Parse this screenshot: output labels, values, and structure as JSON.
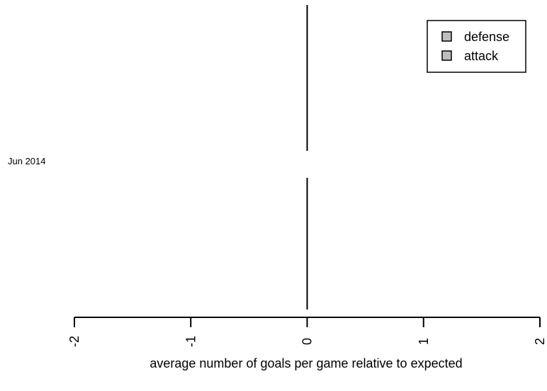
{
  "chart_data": {
    "type": "bar",
    "orientation": "horizontal",
    "categories": [
      "Jun 2014"
    ],
    "series": [
      {
        "name": "defense",
        "values": [
          0
        ],
        "color": "#bebebe"
      },
      {
        "name": "attack",
        "values": [
          0
        ],
        "color": "#bebebe"
      }
    ],
    "xlabel": "average number of goals per game relative to expected",
    "xlim": [
      -2,
      2
    ],
    "xticks": [
      -2,
      -1,
      0,
      1,
      2
    ],
    "x_tick_labels": [
      "-2",
      "-1",
      "0",
      "1",
      "2"
    ],
    "legend_position": "top-right",
    "grid": false
  }
}
